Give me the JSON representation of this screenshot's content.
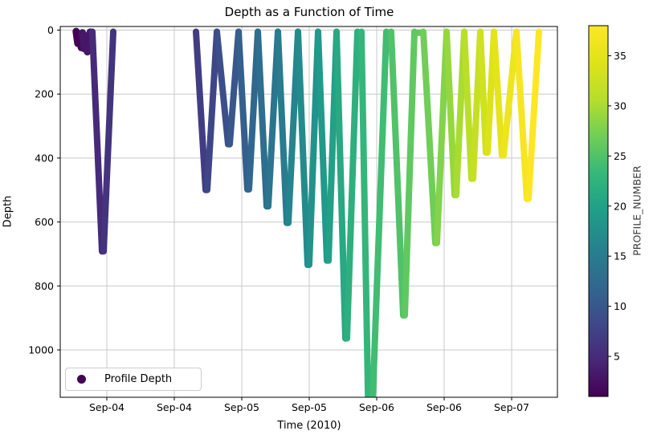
{
  "title": "Depth as a Function of Time",
  "axes": {
    "xlabel": "Time (2010)",
    "ylabel": "Depth",
    "x_ticks": [
      {
        "label": "Sep-04",
        "hours": 0
      },
      {
        "label": "Sep-04",
        "hours": 12
      },
      {
        "label": "Sep-05",
        "hours": 24
      },
      {
        "label": "Sep-05",
        "hours": 36
      },
      {
        "label": "Sep-06",
        "hours": 48
      },
      {
        "label": "Sep-06",
        "hours": 60
      },
      {
        "label": "Sep-07",
        "hours": 72
      }
    ],
    "y_ticks": [
      0,
      200,
      400,
      600,
      800,
      1000
    ],
    "grid": true
  },
  "legend": {
    "label": "Profile Depth",
    "marker_color": "#440154",
    "position": "lower left"
  },
  "colorbar": {
    "label": "PROFILE_NUMBER",
    "ticks": [
      5,
      10,
      15,
      20,
      25,
      30,
      35
    ],
    "min": 1,
    "max": 38
  },
  "colors": {
    "viridis_stops": [
      [
        68,
        1,
        84
      ],
      [
        72,
        40,
        120
      ],
      [
        62,
        74,
        137
      ],
      [
        49,
        104,
        142
      ],
      [
        38,
        130,
        142
      ],
      [
        31,
        158,
        137
      ],
      [
        53,
        183,
        121
      ],
      [
        110,
        206,
        88
      ],
      [
        181,
        222,
        43
      ],
      [
        223,
        227,
        24
      ],
      [
        253,
        231,
        37
      ]
    ],
    "grid": "#c9c9c9",
    "spine": "#000000",
    "background": "#ffffff"
  },
  "chart_data": {
    "type": "scatter",
    "title": "Depth as a Function of Time",
    "xlabel": "Time (2010)",
    "ylabel": "Depth",
    "x_unit": "hours since Sep-04 00:00",
    "ylim_displayed": [
      0,
      1148
    ],
    "y_inverted": true,
    "color_by": "PROFILE_NUMBER",
    "n_profiles": 38,
    "surface_blobs": [
      {
        "profiles": [
          1,
          2
        ],
        "bottom_time": "Sep-03 19:30",
        "max_depth": 60,
        "points": [
          [
            -5.45,
            4
          ],
          [
            -5.15,
            42
          ],
          [
            -4.85,
            18
          ],
          [
            -4.55,
            55
          ],
          [
            -4.25,
            12
          ]
        ]
      },
      {
        "profiles": [
          3,
          4
        ],
        "bottom_time": "Sep-03 20:35",
        "max_depth": 70,
        "points": [
          [
            -4.35,
            8
          ],
          [
            -4.05,
            58
          ],
          [
            -3.75,
            28
          ],
          [
            -3.45,
            68
          ],
          [
            -3.15,
            22
          ],
          [
            -2.95,
            6
          ]
        ]
      }
    ],
    "dives": [
      {
        "profiles": [
          5,
          6
        ],
        "start_h": -2.57,
        "bottom_h": -0.71,
        "end_h": 1.14,
        "max_depth": 692,
        "bottom_time": "Sep-03 23:15",
        "clipped": false
      },
      {
        "profiles": [
          7,
          8
        ],
        "start_h": 15.86,
        "bottom_h": 17.71,
        "end_h": 19.57,
        "max_depth": 500,
        "bottom_time": "Sep-04 17:45",
        "clipped": false
      },
      {
        "profiles": [
          9,
          10
        ],
        "start_h": 19.57,
        "bottom_h": 21.71,
        "end_h": 23.43,
        "max_depth": 357,
        "bottom_time": "Sep-04 21:45",
        "clipped": false
      },
      {
        "profiles": [
          11,
          12
        ],
        "start_h": 23.43,
        "bottom_h": 25.14,
        "end_h": 26.86,
        "max_depth": 498,
        "bottom_time": "Sep-05 01:10",
        "clipped": false
      },
      {
        "profiles": [
          13,
          14
        ],
        "start_h": 26.86,
        "bottom_h": 28.57,
        "end_h": 30.43,
        "max_depth": 551,
        "bottom_time": "Sep-05 04:35",
        "clipped": false
      },
      {
        "profiles": [
          15,
          16
        ],
        "start_h": 30.43,
        "bottom_h": 32.14,
        "end_h": 34.0,
        "max_depth": 603,
        "bottom_time": "Sep-05 08:10",
        "clipped": false
      },
      {
        "profiles": [
          17,
          18
        ],
        "start_h": 34.0,
        "bottom_h": 35.86,
        "end_h": 37.57,
        "max_depth": 734,
        "bottom_time": "Sep-05 11:50",
        "clipped": false
      },
      {
        "profiles": [
          19,
          20
        ],
        "start_h": 37.57,
        "bottom_h": 39.29,
        "end_h": 40.86,
        "max_depth": 721,
        "bottom_time": "Sep-05 15:15",
        "clipped": false
      },
      {
        "profiles": [
          21,
          22
        ],
        "start_h": 40.86,
        "bottom_h": 42.57,
        "end_h": 44.57,
        "max_depth": 964,
        "bottom_time": "Sep-05 18:35",
        "clipped": false
      },
      {
        "profiles": [
          23,
          24
        ],
        "start_h": 45.29,
        "bottom_h": 46.86,
        "end_h": 49.71,
        "max_depth": 1190,
        "bottom_time": "Sep-05 22:50",
        "clipped": true
      },
      {
        "profiles": [
          25,
          26
        ],
        "start_h": 50.57,
        "bottom_h": 52.86,
        "end_h": 54.71,
        "max_depth": 892,
        "bottom_time": "Sep-06 04:50",
        "clipped": false
      },
      {
        "profiles": [
          27,
          28
        ],
        "start_h": 56.29,
        "bottom_h": 58.57,
        "end_h": 60.43,
        "max_depth": 666,
        "bottom_time": "Sep-06 10:35",
        "clipped": false
      },
      {
        "profiles": [
          29,
          30
        ],
        "start_h": 60.43,
        "bottom_h": 62.0,
        "end_h": 63.57,
        "max_depth": 516,
        "bottom_time": "Sep-06 14:00",
        "clipped": false
      },
      {
        "profiles": [
          31,
          32
        ],
        "start_h": 63.57,
        "bottom_h": 65.0,
        "end_h": 66.43,
        "max_depth": 465,
        "bottom_time": "Sep-06 17:00",
        "clipped": false
      },
      {
        "profiles": [
          33,
          34
        ],
        "start_h": 66.43,
        "bottom_h": 67.57,
        "end_h": 68.86,
        "max_depth": 383,
        "bottom_time": "Sep-06 19:35",
        "clipped": false
      },
      {
        "profiles": [
          35,
          36
        ],
        "start_h": 68.86,
        "bottom_h": 70.43,
        "end_h": 72.86,
        "max_depth": 392,
        "bottom_time": "Sep-06 22:25",
        "clipped": false
      },
      {
        "profiles": [
          37,
          38
        ],
        "start_h": 72.86,
        "bottom_h": 74.86,
        "end_h": 76.86,
        "max_depth": 528,
        "bottom_time": "Sep-07 02:50",
        "clipped": false
      }
    ]
  }
}
